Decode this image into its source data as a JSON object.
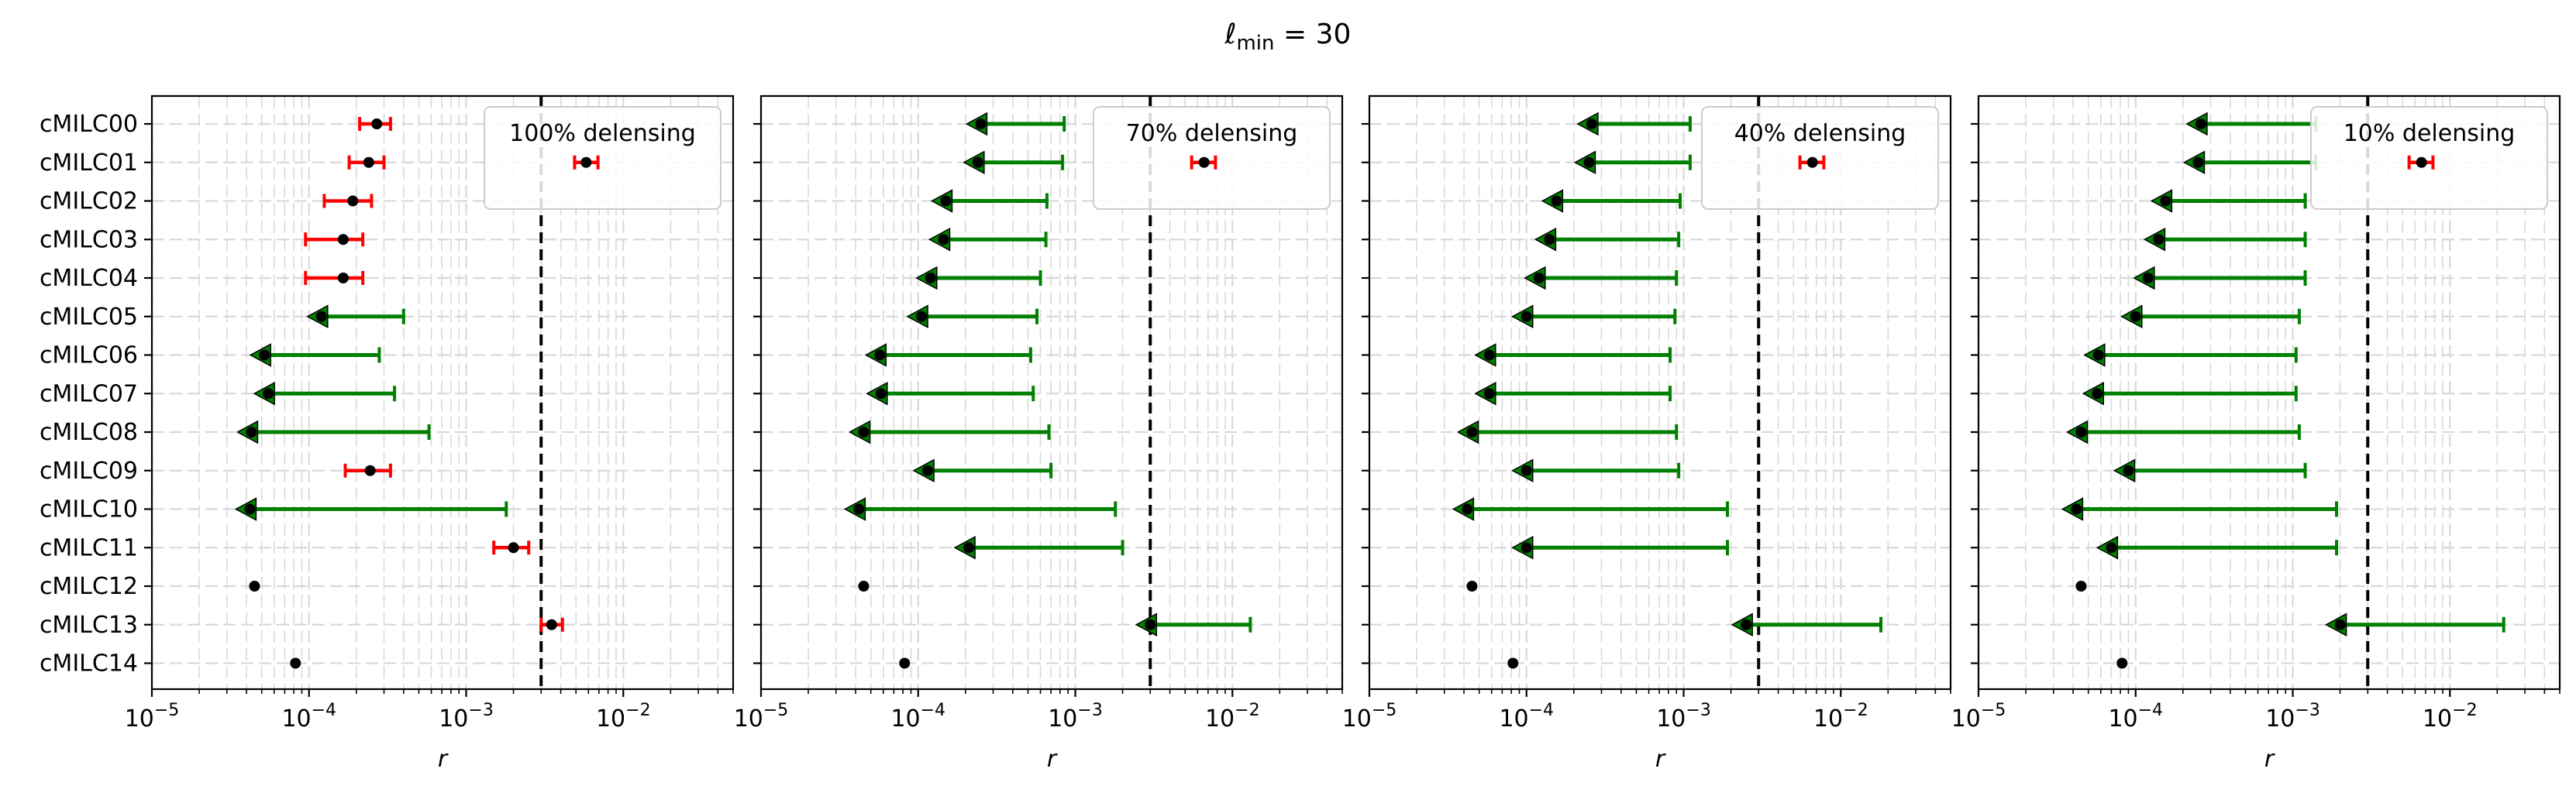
{
  "figure": {
    "suptitle_symbol": "ℓ",
    "suptitle_sub": "min",
    "suptitle_rest": " = 30"
  },
  "colors": {
    "measurement": "#ff0000",
    "upper_limit": "#008000",
    "point": "#000000",
    "vline": "#000000",
    "grid": "#d9d9d9"
  },
  "chart_data": [
    {
      "type": "scatter",
      "legend_text": "100% delensing",
      "legend_placement": "top-right",
      "xlabel": "r",
      "xscale": "log",
      "xlim": [
        1e-05,
        0.05
      ],
      "x_ticks": [
        {
          "base": "10",
          "exp": "−5"
        },
        {
          "base": "10",
          "exp": "−4"
        },
        {
          "base": "10",
          "exp": "−3"
        },
        {
          "base": "10",
          "exp": "−2"
        }
      ],
      "grid": true,
      "vline": 0.003,
      "categories": [
        "cMILC00",
        "cMILC01",
        "cMILC02",
        "cMILC03",
        "cMILC04",
        "cMILC05",
        "cMILC06",
        "cMILC07",
        "cMILC08",
        "cMILC09",
        "cMILC10",
        "cMILC11",
        "cMILC12",
        "cMILC13",
        "cMILC14"
      ],
      "points": [
        {
          "kind": "measurement",
          "x": 0.00027,
          "lo": 0.00021,
          "hi": 0.00033
        },
        {
          "kind": "measurement",
          "x": 0.00024,
          "lo": 0.00018,
          "hi": 0.0003
        },
        {
          "kind": "measurement",
          "x": 0.00019,
          "lo": 0.000125,
          "hi": 0.00025
        },
        {
          "kind": "measurement",
          "x": 0.000165,
          "lo": 9.5e-05,
          "hi": 0.00022
        },
        {
          "kind": "measurement",
          "x": 0.000165,
          "lo": 9.5e-05,
          "hi": 0.00022
        },
        {
          "kind": "upper_limit",
          "x": 0.00012,
          "hi": 0.0004
        },
        {
          "kind": "upper_limit",
          "x": 5.2e-05,
          "hi": 0.00028
        },
        {
          "kind": "upper_limit",
          "x": 5.5e-05,
          "hi": 0.00035
        },
        {
          "kind": "upper_limit",
          "x": 4.3e-05,
          "hi": 0.00058
        },
        {
          "kind": "measurement",
          "x": 0.000245,
          "lo": 0.00017,
          "hi": 0.00033
        },
        {
          "kind": "upper_limit",
          "x": 4.2e-05,
          "hi": 0.0018
        },
        {
          "kind": "measurement",
          "x": 0.002,
          "lo": 0.0015,
          "hi": 0.0025
        },
        {
          "kind": "point",
          "x": 4.5e-05
        },
        {
          "kind": "measurement",
          "x": 0.0035,
          "lo": 0.003,
          "hi": 0.0041
        },
        {
          "kind": "point",
          "x": 8.2e-05
        }
      ],
      "extra_markers": [
        {
          "kind": "measurement",
          "x": 0.0058,
          "lo": 0.0049,
          "hi": 0.0069,
          "row": 1
        }
      ]
    },
    {
      "type": "scatter",
      "legend_text": "70% delensing",
      "legend_placement": "top-right",
      "xlabel": "r",
      "xscale": "log",
      "xlim": [
        1e-05,
        0.05
      ],
      "x_ticks": [
        {
          "base": "10",
          "exp": "−5"
        },
        {
          "base": "10",
          "exp": "−4"
        },
        {
          "base": "10",
          "exp": "−3"
        },
        {
          "base": "10",
          "exp": "−2"
        }
      ],
      "grid": true,
      "vline": 0.003,
      "categories": [
        "cMILC00",
        "cMILC01",
        "cMILC02",
        "cMILC03",
        "cMILC04",
        "cMILC05",
        "cMILC06",
        "cMILC07",
        "cMILC08",
        "cMILC09",
        "cMILC10",
        "cMILC11",
        "cMILC12",
        "cMILC13",
        "cMILC14"
      ],
      "points": [
        {
          "kind": "upper_limit",
          "x": 0.00025,
          "hi": 0.00085
        },
        {
          "kind": "upper_limit",
          "x": 0.00024,
          "hi": 0.00083
        },
        {
          "kind": "upper_limit",
          "x": 0.00015,
          "hi": 0.00066
        },
        {
          "kind": "upper_limit",
          "x": 0.000145,
          "hi": 0.00065
        },
        {
          "kind": "upper_limit",
          "x": 0.00012,
          "hi": 0.0006
        },
        {
          "kind": "upper_limit",
          "x": 0.000105,
          "hi": 0.00057
        },
        {
          "kind": "upper_limit",
          "x": 5.7e-05,
          "hi": 0.00052
        },
        {
          "kind": "upper_limit",
          "x": 5.8e-05,
          "hi": 0.00054
        },
        {
          "kind": "upper_limit",
          "x": 4.5e-05,
          "hi": 0.00068
        },
        {
          "kind": "upper_limit",
          "x": 0.000115,
          "hi": 0.0007
        },
        {
          "kind": "upper_limit",
          "x": 4.2e-05,
          "hi": 0.0018
        },
        {
          "kind": "upper_limit",
          "x": 0.00021,
          "hi": 0.002
        },
        {
          "kind": "point",
          "x": 4.5e-05
        },
        {
          "kind": "upper_limit",
          "x": 0.003,
          "hi": 0.013
        },
        {
          "kind": "point",
          "x": 8.2e-05
        }
      ],
      "extra_markers": [
        {
          "kind": "measurement",
          "x": 0.0066,
          "lo": 0.0055,
          "hi": 0.0078,
          "row": 1
        }
      ]
    },
    {
      "type": "scatter",
      "legend_text": "40% delensing",
      "legend_placement": "top-right",
      "xlabel": "r",
      "xscale": "log",
      "xlim": [
        1e-05,
        0.05
      ],
      "x_ticks": [
        {
          "base": "10",
          "exp": "−5"
        },
        {
          "base": "10",
          "exp": "−4"
        },
        {
          "base": "10",
          "exp": "−3"
        },
        {
          "base": "10",
          "exp": "−2"
        }
      ],
      "grid": true,
      "vline": 0.003,
      "categories": [
        "cMILC00",
        "cMILC01",
        "cMILC02",
        "cMILC03",
        "cMILC04",
        "cMILC05",
        "cMILC06",
        "cMILC07",
        "cMILC08",
        "cMILC09",
        "cMILC10",
        "cMILC11",
        "cMILC12",
        "cMILC13",
        "cMILC14"
      ],
      "points": [
        {
          "kind": "upper_limit",
          "x": 0.00026,
          "hi": 0.0011
        },
        {
          "kind": "upper_limit",
          "x": 0.00025,
          "hi": 0.0011
        },
        {
          "kind": "upper_limit",
          "x": 0.000155,
          "hi": 0.00095
        },
        {
          "kind": "upper_limit",
          "x": 0.00014,
          "hi": 0.00093
        },
        {
          "kind": "upper_limit",
          "x": 0.00012,
          "hi": 0.0009
        },
        {
          "kind": "upper_limit",
          "x": 0.0001,
          "hi": 0.00088
        },
        {
          "kind": "upper_limit",
          "x": 5.8e-05,
          "hi": 0.00082
        },
        {
          "kind": "upper_limit",
          "x": 5.8e-05,
          "hi": 0.00082
        },
        {
          "kind": "upper_limit",
          "x": 4.5e-05,
          "hi": 0.0009
        },
        {
          "kind": "upper_limit",
          "x": 0.0001,
          "hi": 0.00093
        },
        {
          "kind": "upper_limit",
          "x": 4.2e-05,
          "hi": 0.0019
        },
        {
          "kind": "upper_limit",
          "x": 0.0001,
          "hi": 0.0019
        },
        {
          "kind": "point",
          "x": 4.5e-05
        },
        {
          "kind": "upper_limit",
          "x": 0.0025,
          "hi": 0.018
        },
        {
          "kind": "point",
          "x": 8.2e-05
        }
      ],
      "extra_markers": [
        {
          "kind": "measurement",
          "x": 0.0066,
          "lo": 0.0055,
          "hi": 0.0078,
          "row": 1
        }
      ]
    },
    {
      "type": "scatter",
      "legend_text": "10% delensing",
      "legend_placement": "top-right",
      "xlabel": "r",
      "xscale": "log",
      "xlim": [
        1e-05,
        0.05
      ],
      "x_ticks": [
        {
          "base": "10",
          "exp": "−5"
        },
        {
          "base": "10",
          "exp": "−4"
        },
        {
          "base": "10",
          "exp": "−3"
        },
        {
          "base": "10",
          "exp": "−2"
        }
      ],
      "grid": true,
      "vline": 0.003,
      "categories": [
        "cMILC00",
        "cMILC01",
        "cMILC02",
        "cMILC03",
        "cMILC04",
        "cMILC05",
        "cMILC06",
        "cMILC07",
        "cMILC08",
        "cMILC09",
        "cMILC10",
        "cMILC11",
        "cMILC12",
        "cMILC13",
        "cMILC14"
      ],
      "points": [
        {
          "kind": "upper_limit",
          "x": 0.00026,
          "hi": 0.0014
        },
        {
          "kind": "upper_limit",
          "x": 0.00025,
          "hi": 0.0014
        },
        {
          "kind": "upper_limit",
          "x": 0.000155,
          "hi": 0.0012
        },
        {
          "kind": "upper_limit",
          "x": 0.00014,
          "hi": 0.0012
        },
        {
          "kind": "upper_limit",
          "x": 0.00012,
          "hi": 0.0012
        },
        {
          "kind": "upper_limit",
          "x": 0.0001,
          "hi": 0.0011
        },
        {
          "kind": "upper_limit",
          "x": 5.8e-05,
          "hi": 0.00105
        },
        {
          "kind": "upper_limit",
          "x": 5.7e-05,
          "hi": 0.00105
        },
        {
          "kind": "upper_limit",
          "x": 4.5e-05,
          "hi": 0.0011
        },
        {
          "kind": "upper_limit",
          "x": 9e-05,
          "hi": 0.0012
        },
        {
          "kind": "upper_limit",
          "x": 4.2e-05,
          "hi": 0.0019
        },
        {
          "kind": "upper_limit",
          "x": 7e-05,
          "hi": 0.0019
        },
        {
          "kind": "point",
          "x": 4.5e-05
        },
        {
          "kind": "upper_limit",
          "x": 0.002,
          "hi": 0.022
        },
        {
          "kind": "point",
          "x": 8.2e-05
        }
      ],
      "extra_markers": [
        {
          "kind": "measurement",
          "x": 0.0066,
          "lo": 0.0055,
          "hi": 0.0078,
          "row": 1
        }
      ]
    }
  ]
}
